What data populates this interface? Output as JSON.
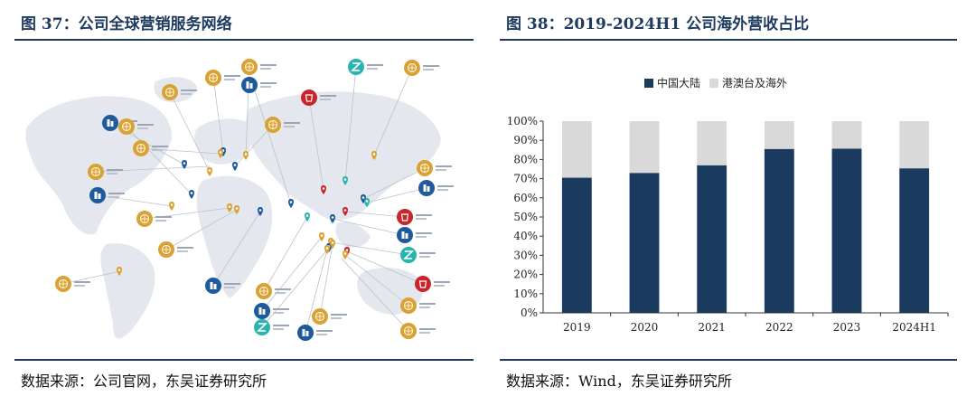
{
  "left": {
    "title": "图 37：公司全球营销服务网络",
    "source": "数据来源：公司官网，东吴证券研究所",
    "map_icon_colors": {
      "sales": "#d9a233",
      "office": "#1f5a9c",
      "factory": "#2bb3ad",
      "rnd": "#c9252b",
      "land": "#e6e9ee"
    },
    "icons": [
      "globe-icon",
      "building-icon",
      "factory-icon",
      "research-center-icon",
      "location-pin-icon"
    ]
  },
  "right": {
    "title": "图 38：2019-2024H1 公司海外营收占比",
    "source": "数据来源：Wind，东吴证券研究所"
  },
  "chart_data": {
    "type": "bar",
    "stacked": true,
    "title": "",
    "categories": [
      "2019",
      "2020",
      "2021",
      "2022",
      "2023",
      "2024H1"
    ],
    "series": [
      {
        "name": "中国大陆",
        "color": "#1b3a60",
        "values": [
          70.5,
          73,
          77,
          85.5,
          85.7,
          75.4
        ]
      },
      {
        "name": "港澳台及海外",
        "color": "#d9d9d9",
        "values": [
          29.5,
          27,
          23,
          14.5,
          14.3,
          24.6
        ]
      }
    ],
    "ylim": [
      0,
      100
    ],
    "yticks": [
      "0%",
      "10%",
      "20%",
      "30%",
      "40%",
      "50%",
      "60%",
      "70%",
      "80%",
      "90%",
      "100%"
    ],
    "xlabel": "",
    "ylabel": "",
    "legend": "top-center"
  }
}
